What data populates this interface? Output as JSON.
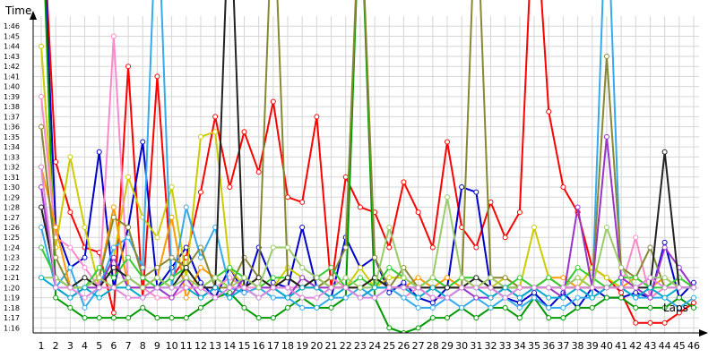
{
  "chart_data": {
    "type": "line",
    "xlabel": "Laps",
    "ylabel": "Time",
    "x_categories": [
      "1",
      "2",
      "3",
      "4",
      "5",
      "6",
      "7",
      "8",
      "9",
      "10",
      "11",
      "12",
      "13",
      "14",
      "15",
      "16",
      "17",
      "18",
      "19",
      "20",
      "21",
      "22",
      "23",
      "24",
      "25",
      "26",
      "27",
      "28",
      "29",
      "30",
      "31",
      "32",
      "33",
      "34",
      "35",
      "36",
      "37",
      "38",
      "39",
      "40",
      "41",
      "42",
      "43",
      "44",
      "45",
      "46"
    ],
    "y_ticks": [
      "1:16",
      "1:17",
      "1:18",
      "1:19",
      "1:20",
      "1:21",
      "1:22",
      "1:23",
      "1:24",
      "1:25",
      "1:26",
      "1:27",
      "1:28",
      "1:29",
      "1:30",
      "1:31",
      "1:32",
      "1:33",
      "1:34",
      "1:35",
      "1:36",
      "1:37",
      "1:38",
      "1:39",
      "1:40",
      "1:41",
      "1:42",
      "1:43",
      "1:44",
      "1:45",
      "1:46"
    ],
    "ylim": [
      75.5,
      107
    ],
    "grid": true,
    "legend": "none",
    "series": [
      {
        "color": "#ff0000",
        "values": [
          120,
          92.5,
          87.5,
          84,
          83.5,
          77.5,
          102,
          79,
          101,
          81,
          83,
          89.5,
          97,
          90,
          95.5,
          91.5,
          98.5,
          89,
          88.5,
          97,
          80,
          91,
          88,
          87.5,
          84,
          90.5,
          87.5,
          84,
          94.5,
          86,
          84,
          88.5,
          85,
          87.5,
          120,
          97.5,
          90,
          87.5,
          82,
          81,
          79.5,
          76.5,
          76.5,
          76.5,
          77.5,
          78.5
        ]
      },
      {
        "color": "#0000cc",
        "values": [
          120,
          86,
          82,
          83,
          93.5,
          80,
          86,
          94.5,
          80,
          82,
          84,
          80.5,
          79,
          82,
          79.5,
          84,
          80.5,
          80,
          86,
          80,
          79,
          85,
          82,
          83,
          79.5,
          80.5,
          79,
          78.5,
          80,
          90,
          89.5,
          80,
          79,
          78.5,
          79.5,
          78,
          79.5,
          78,
          80,
          79,
          79,
          79.5,
          79,
          84.5,
          79,
          80.5
        ]
      },
      {
        "color": "#009900",
        "values": [
          120,
          79,
          78,
          77,
          77,
          77,
          77,
          78,
          77,
          77,
          77,
          78,
          79,
          79.5,
          78,
          77,
          77,
          78,
          79,
          78,
          78,
          79,
          120,
          79,
          76,
          75.5,
          76,
          77,
          77,
          78,
          77,
          78,
          78,
          77,
          79,
          77,
          77,
          78,
          78,
          79,
          79,
          78,
          78,
          78,
          79,
          78
        ]
      },
      {
        "color": "#cccc00",
        "values": [
          104,
          84,
          93,
          86,
          80,
          83,
          91,
          87,
          85,
          90,
          81,
          95,
          95.5,
          82,
          80,
          79,
          80,
          82,
          81,
          80,
          81,
          80,
          82,
          80,
          81,
          81,
          80,
          81,
          80,
          81,
          80,
          80,
          81,
          80,
          86,
          81,
          80,
          80,
          82,
          81,
          80,
          80,
          79,
          80,
          81,
          80
        ]
      },
      {
        "color": "#ff88cc",
        "values": [
          99,
          85,
          84,
          82,
          80,
          105,
          80,
          80,
          79,
          79,
          80,
          80,
          80,
          81,
          80,
          80,
          80,
          80,
          80,
          80,
          81,
          80,
          80,
          80,
          80,
          79,
          80,
          80,
          80,
          80,
          80,
          80,
          80,
          80,
          80,
          80,
          80,
          80,
          79,
          80,
          80,
          85,
          79,
          80,
          80,
          80
        ]
      },
      {
        "color": "#33aaee",
        "values": [
          86,
          80,
          82,
          78,
          80,
          84,
          85,
          82,
          120,
          80,
          88,
          83,
          86,
          80,
          79.5,
          80,
          79,
          79,
          78,
          78,
          79,
          79,
          80,
          79,
          80,
          79,
          78,
          78,
          79,
          78,
          79,
          78,
          79,
          78,
          79,
          78,
          78,
          79,
          79,
          120,
          80,
          79,
          79,
          79,
          78,
          79
        ]
      },
      {
        "color": "#ff9900",
        "values": [
          92,
          86,
          80,
          80,
          81,
          88,
          80,
          80,
          81,
          87,
          79,
          82,
          81,
          80,
          80,
          81,
          80,
          81,
          80,
          81,
          80,
          80,
          80,
          81,
          80,
          80,
          81,
          80,
          81,
          80,
          80,
          81,
          80,
          80,
          80,
          81,
          81,
          80,
          80,
          80,
          80,
          81,
          80,
          81,
          80,
          80
        ]
      },
      {
        "color": "#888833",
        "values": [
          96,
          83,
          80,
          80,
          81,
          87,
          86,
          81,
          82,
          83,
          82,
          84,
          80,
          80,
          83,
          81,
          120,
          81,
          80,
          80,
          81,
          84,
          120,
          83,
          80,
          82,
          80,
          81,
          80,
          80,
          120,
          81,
          81,
          80,
          80,
          81,
          80,
          81,
          80,
          103,
          82,
          81,
          84,
          80,
          80,
          80
        ]
      },
      {
        "color": "#33cc33",
        "values": [
          84,
          81,
          80,
          80,
          82,
          81,
          83,
          81,
          80,
          81,
          82,
          80,
          81,
          82,
          81,
          80,
          81,
          81,
          80,
          81,
          82,
          80,
          81,
          80,
          82,
          81,
          80,
          81,
          80,
          81,
          81,
          80,
          80,
          81,
          80,
          81,
          80,
          82,
          81,
          80,
          81,
          81,
          80,
          80,
          81,
          80
        ]
      },
      {
        "color": "#9933cc",
        "values": [
          90,
          80,
          79,
          80,
          80,
          83,
          80,
          80,
          80,
          79,
          81,
          79,
          80,
          79,
          81,
          80,
          80,
          79,
          81,
          80,
          80,
          80,
          79,
          80,
          80,
          80,
          80,
          79,
          79,
          80,
          79,
          79,
          80,
          79,
          80,
          80,
          79,
          88,
          80,
          95,
          81,
          80,
          79,
          84,
          82,
          80
        ]
      },
      {
        "color": "#222222",
        "values": [
          88,
          81,
          80,
          81,
          80,
          82,
          81,
          80,
          81,
          80,
          82,
          80,
          80,
          120,
          80,
          81,
          80,
          81,
          80,
          81,
          80,
          80,
          80,
          81,
          80,
          80,
          80,
          80,
          80,
          80,
          81,
          80,
          80,
          80,
          80,
          80,
          80,
          80,
          80,
          80,
          80,
          80,
          80,
          93.5,
          80,
          80
        ]
      },
      {
        "color": "#99cc66",
        "values": [
          81,
          81,
          80,
          80,
          81,
          80,
          81,
          80,
          81,
          80,
          81,
          80,
          81,
          80,
          81,
          80,
          84,
          84,
          82,
          81,
          80,
          81,
          80,
          80,
          86,
          81,
          80,
          81,
          89,
          81,
          80,
          81,
          80,
          80,
          80,
          80,
          80,
          81,
          80,
          86,
          82,
          80,
          81,
          81,
          80,
          80
        ]
      },
      {
        "color": "#00aacc",
        "values": [
          81,
          80,
          79,
          80,
          79,
          80,
          80,
          79,
          80,
          80,
          80,
          79,
          80,
          79,
          80,
          79,
          80,
          79,
          80,
          80,
          79,
          80,
          79,
          80,
          80,
          80,
          79,
          80,
          79,
          80,
          80,
          79,
          80,
          79,
          80,
          79,
          79,
          80,
          79,
          80,
          80,
          79,
          80,
          79,
          80,
          80
        ]
      },
      {
        "color": "#dd88dd",
        "values": [
          92,
          80,
          80,
          79,
          80,
          80,
          79,
          79,
          80,
          80,
          80,
          80,
          79,
          80,
          80,
          79,
          80,
          80,
          79,
          79,
          80,
          80,
          79,
          79,
          80,
          80,
          80,
          79,
          79,
          80,
          80,
          80,
          79,
          80,
          80,
          80,
          80,
          80,
          80,
          80,
          80,
          80,
          81,
          80,
          80,
          80
        ]
      }
    ]
  }
}
